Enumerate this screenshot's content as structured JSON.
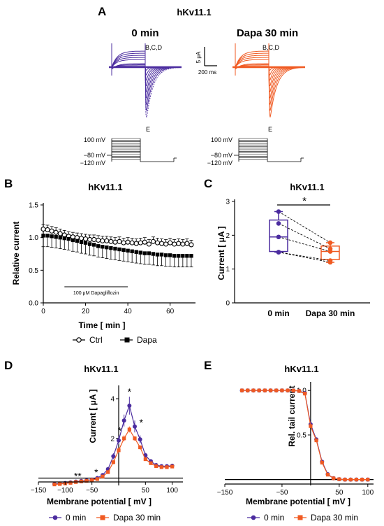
{
  "colors": {
    "ctrl": "#4b2c9f",
    "dapa": "#f05a22",
    "axis": "#000000"
  },
  "panel_letters": {
    "A": "A",
    "B": "B",
    "C": "C",
    "D": "D",
    "E": "E"
  },
  "panel_a": {
    "title": "hKv11.1",
    "left_title": "0 min",
    "right_title": "Dapa 30 min",
    "trace_labels": {
      "bcd": "B,C,D",
      "e": "E"
    },
    "scale_current": "5 μA",
    "scale_time": "200 ms",
    "protocol_labels": [
      "100 mV",
      "−80 mV",
      "−120 mV"
    ]
  },
  "chart_data": [
    {
      "panel": "B",
      "type": "scatter",
      "title": "hKv11.1",
      "xlabel": "Time [ min ]",
      "ylabel": "Relative current",
      "xlim": [
        0,
        72
      ],
      "ylim": [
        0,
        1.5
      ],
      "xticks": [
        "0",
        "20",
        "40",
        "60"
      ],
      "yticks": [
        "0.0",
        "0.5",
        "1.0",
        "1.5"
      ],
      "annotation": "100 μM Dapagliflozin",
      "annotation_range": [
        10,
        40
      ],
      "x": [
        0,
        2,
        4,
        6,
        8,
        10,
        12,
        14,
        16,
        18,
        20,
        22,
        24,
        26,
        28,
        30,
        32,
        34,
        36,
        38,
        40,
        42,
        44,
        46,
        48,
        50,
        52,
        54,
        56,
        58,
        60,
        62,
        64,
        66,
        68,
        70
      ],
      "series": [
        {
          "name": "Ctrl",
          "marker": "open-circle",
          "values": [
            1.13,
            1.12,
            1.1,
            1.08,
            1.06,
            1.04,
            1.02,
            1.01,
            1.0,
            0.99,
            0.98,
            0.97,
            0.97,
            0.96,
            0.95,
            0.95,
            0.94,
            0.93,
            0.94,
            0.92,
            0.93,
            0.92,
            0.91,
            0.92,
            0.93,
            0.9,
            0.94,
            0.92,
            0.91,
            0.9,
            0.92,
            0.9,
            0.91,
            0.9,
            0.91,
            0.89
          ],
          "errors": [
            0.07,
            0.07,
            0.07,
            0.07,
            0.07,
            0.07,
            0.07,
            0.07,
            0.07,
            0.07,
            0.07,
            0.07,
            0.07,
            0.07,
            0.07,
            0.07,
            0.07,
            0.07,
            0.07,
            0.07,
            0.07,
            0.07,
            0.07,
            0.07,
            0.07,
            0.07,
            0.07,
            0.07,
            0.07,
            0.07,
            0.07,
            0.07,
            0.07,
            0.07,
            0.07,
            0.07
          ]
        },
        {
          "name": "Dapa",
          "marker": "filled-square",
          "values": [
            1.03,
            1.03,
            1.02,
            1.01,
            1.0,
            0.99,
            0.98,
            0.96,
            0.95,
            0.93,
            0.92,
            0.9,
            0.89,
            0.87,
            0.86,
            0.85,
            0.84,
            0.83,
            0.82,
            0.81,
            0.8,
            0.79,
            0.78,
            0.77,
            0.76,
            0.76,
            0.75,
            0.74,
            0.74,
            0.73,
            0.73,
            0.72,
            0.72,
            0.72,
            0.72,
            0.72
          ],
          "errors": [
            0.17,
            0.17,
            0.17,
            0.17,
            0.17,
            0.17,
            0.17,
            0.17,
            0.17,
            0.17,
            0.17,
            0.17,
            0.17,
            0.17,
            0.17,
            0.17,
            0.17,
            0.17,
            0.17,
            0.17,
            0.17,
            0.17,
            0.17,
            0.17,
            0.17,
            0.17,
            0.17,
            0.17,
            0.17,
            0.17,
            0.17,
            0.17,
            0.17,
            0.17,
            0.17,
            0.17
          ]
        }
      ],
      "legend": [
        "Ctrl",
        "Dapa"
      ]
    },
    {
      "panel": "C",
      "type": "box",
      "title": "hKv11.1",
      "ylabel": "Current [ μA ]",
      "ylim": [
        0,
        3
      ],
      "yticks": [
        "0",
        "1",
        "2",
        "3"
      ],
      "categories": [
        "0 min",
        "Dapa 30 min"
      ],
      "boxes": [
        {
          "category": "0 min",
          "min": 1.5,
          "q1": 1.52,
          "median": 1.95,
          "q3": 2.45,
          "max": 2.7
        },
        {
          "category": "Dapa 30 min",
          "min": 1.2,
          "q1": 1.28,
          "median": 1.52,
          "q3": 1.68,
          "max": 1.78
        }
      ],
      "paired": [
        [
          2.7,
          1.78
        ],
        [
          2.35,
          1.6
        ],
        [
          1.95,
          1.52
        ],
        [
          1.5,
          1.25
        ],
        [
          1.5,
          1.2
        ]
      ],
      "significance": "*"
    },
    {
      "panel": "D",
      "type": "line",
      "title": "hKv11.1",
      "xlabel": "Membrane potential [ mV ]",
      "ylabel": "Current [ μA ]",
      "xlim": [
        -150,
        120
      ],
      "ylim": [
        -0.3,
        4.6
      ],
      "xticks": [
        "−150",
        "−100",
        "−50",
        "50",
        "100"
      ],
      "yticks": [
        "2",
        "4"
      ],
      "x": [
        -120,
        -110,
        -100,
        -90,
        -80,
        -70,
        -60,
        -50,
        -40,
        -30,
        -20,
        -10,
        0,
        10,
        20,
        30,
        40,
        50,
        60,
        70,
        80,
        90,
        100
      ],
      "series": [
        {
          "name": "0 min",
          "marker": "circle",
          "values": [
            -0.3,
            -0.28,
            -0.25,
            -0.22,
            -0.18,
            -0.15,
            -0.12,
            -0.08,
            0.0,
            0.15,
            0.45,
            1.1,
            1.9,
            2.9,
            3.65,
            2.6,
            1.95,
            1.15,
            0.85,
            0.65,
            0.6,
            0.6,
            0.62
          ],
          "errors": [
            0.05,
            0.05,
            0.05,
            0.05,
            0.05,
            0.05,
            0.05,
            0.05,
            0.05,
            0.08,
            0.1,
            0.15,
            0.2,
            0.3,
            0.45,
            0.3,
            0.2,
            0.12,
            0.08,
            0.06,
            0.06,
            0.06,
            0.06
          ]
        },
        {
          "name": "Dapa 30 min",
          "marker": "square",
          "values": [
            -0.32,
            -0.3,
            -0.27,
            -0.24,
            -0.2,
            -0.17,
            -0.14,
            -0.1,
            -0.05,
            0.08,
            0.3,
            0.8,
            1.4,
            2.0,
            2.45,
            2.0,
            1.55,
            0.95,
            0.75,
            0.6,
            0.55,
            0.55,
            0.58
          ],
          "errors": [
            0.04,
            0.04,
            0.04,
            0.04,
            0.04,
            0.04,
            0.04,
            0.04,
            0.04,
            0.05,
            0.07,
            0.1,
            0.12,
            0.15,
            0.15,
            0.12,
            0.1,
            0.08,
            0.06,
            0.05,
            0.05,
            0.05,
            0.05
          ]
        }
      ],
      "significance": [
        {
          "label": "*",
          "x": -80,
          "y": -0.15
        },
        {
          "label": "*",
          "x": -73,
          "y": -0.15
        },
        {
          "label": "*",
          "x": -42,
          "y": 0.05
        },
        {
          "label": "*",
          "x": 2,
          "y": 2.15
        },
        {
          "label": "*",
          "x": 20,
          "y": 4.1
        },
        {
          "label": "*",
          "x": 42,
          "y": 2.55
        }
      ],
      "legend": [
        "0 min",
        "Dapa 30 min"
      ]
    },
    {
      "panel": "E",
      "type": "line",
      "title": "hKv11.1",
      "xlabel": "Membrane potential [ mV ]",
      "ylabel": "Rel. tail current",
      "xlim": [
        -150,
        110
      ],
      "ylim": [
        -0.05,
        1.08
      ],
      "xticks": [
        "−150",
        "−50",
        "50",
        "100"
      ],
      "yticks": [
        "0.5",
        "1.0"
      ],
      "x": [
        -120,
        -110,
        -100,
        -90,
        -80,
        -70,
        -60,
        -50,
        -40,
        -30,
        -20,
        -10,
        0,
        10,
        20,
        30,
        40,
        50,
        60,
        70,
        80,
        90,
        100
      ],
      "series": [
        {
          "name": "0 min",
          "marker": "circle",
          "values": [
            1.0,
            1.0,
            1.0,
            1.0,
            1.0,
            1.0,
            1.0,
            1.0,
            1.0,
            0.999,
            0.995,
            0.97,
            0.62,
            0.45,
            0.2,
            0.06,
            0.015,
            0.004,
            0.0,
            0.0,
            0.0,
            0.0,
            0.0
          ]
        },
        {
          "name": "Dapa 30 min",
          "marker": "square",
          "values": [
            1.0,
            1.0,
            1.0,
            1.0,
            1.0,
            1.0,
            1.0,
            1.0,
            1.0,
            0.999,
            0.994,
            0.965,
            0.6,
            0.44,
            0.19,
            0.055,
            0.014,
            0.004,
            0.0,
            0.0,
            0.0,
            0.0,
            0.0
          ]
        }
      ],
      "legend": [
        "0 min",
        "Dapa 30 min"
      ]
    }
  ]
}
